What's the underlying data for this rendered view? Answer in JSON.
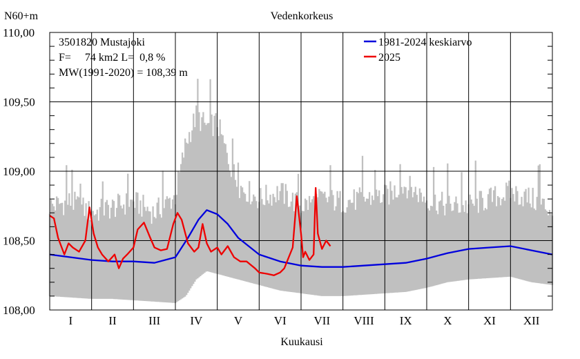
{
  "chart_data": {
    "type": "line",
    "title": "Vedenkorkeus",
    "ylabel": "N60+m",
    "xlabel": "Kuukausi",
    "ylim": [
      108.0,
      110.0
    ],
    "xlim": [
      0,
      12
    ],
    "x_unit": "months from January 1",
    "yticks": [
      108.0,
      108.5,
      109.0,
      109.5,
      110.0
    ],
    "ytick_labels": [
      "108,00",
      "108,50",
      "109,00",
      "109,50",
      "110,00"
    ],
    "month_labels": [
      "I",
      "II",
      "III",
      "IV",
      "V",
      "VI",
      "VII",
      "VIII",
      "IX",
      "X",
      "XI",
      "XII"
    ],
    "grid": true,
    "legend_position": "top-right",
    "annotations": [
      "3501820 Mustajoki",
      "F=     74 km2 L=  0,8 %",
      "MW(1991-2020) = 108,39 m"
    ],
    "colors": {
      "mean": "#0000dd",
      "current": "#ee0000",
      "range": "#c0c0c0"
    },
    "series": [
      {
        "name": "1981-2024 keskiarvo",
        "color": "#0000dd",
        "x": [
          0.0,
          0.5,
          1.0,
          1.5,
          2.0,
          2.5,
          3.0,
          3.3,
          3.55,
          3.75,
          4.0,
          4.25,
          4.5,
          5.0,
          5.5,
          6.0,
          6.5,
          7.0,
          7.5,
          8.0,
          8.5,
          9.0,
          9.5,
          10.0,
          10.5,
          11.0,
          11.5,
          12.0
        ],
        "y": [
          108.4,
          108.38,
          108.36,
          108.35,
          108.35,
          108.34,
          108.38,
          108.52,
          108.65,
          108.72,
          108.69,
          108.62,
          108.52,
          108.4,
          108.35,
          108.32,
          108.31,
          108.31,
          108.32,
          108.33,
          108.34,
          108.37,
          108.41,
          108.44,
          108.45,
          108.46,
          108.43,
          108.4
        ]
      },
      {
        "name": "2025",
        "color": "#ee0000",
        "x": [
          0.0,
          0.1,
          0.2,
          0.35,
          0.45,
          0.55,
          0.7,
          0.85,
          0.95,
          1.05,
          1.15,
          1.25,
          1.4,
          1.55,
          1.65,
          1.75,
          1.85,
          2.0,
          2.1,
          2.25,
          2.4,
          2.5,
          2.65,
          2.8,
          2.95,
          3.05,
          3.15,
          3.3,
          3.45,
          3.55,
          3.65,
          3.75,
          3.85,
          4.0,
          4.1,
          4.25,
          4.4,
          4.55,
          4.7,
          4.9,
          5.0,
          5.2,
          5.35,
          5.5,
          5.6,
          5.8,
          5.9,
          6.0,
          6.05,
          6.1,
          6.2,
          6.3,
          6.35,
          6.4,
          6.5,
          6.6,
          6.7
        ],
        "y": [
          108.68,
          108.66,
          108.52,
          108.4,
          108.48,
          108.45,
          108.42,
          108.5,
          108.74,
          108.55,
          108.45,
          108.4,
          108.35,
          108.4,
          108.3,
          108.37,
          108.4,
          108.45,
          108.58,
          108.63,
          108.52,
          108.45,
          108.43,
          108.44,
          108.62,
          108.7,
          108.65,
          108.48,
          108.42,
          108.45,
          108.62,
          108.48,
          108.42,
          108.45,
          108.4,
          108.46,
          108.38,
          108.35,
          108.35,
          108.3,
          108.27,
          108.26,
          108.25,
          108.27,
          108.3,
          108.45,
          108.82,
          108.55,
          108.38,
          108.42,
          108.36,
          108.4,
          108.88,
          108.55,
          108.44,
          108.5,
          108.46
        ]
      },
      {
        "name": "range",
        "color": "#c0c0c0",
        "x": [
          0.0,
          0.5,
          1.0,
          1.5,
          2.0,
          2.5,
          3.0,
          3.25,
          3.5,
          3.75,
          4.0,
          4.25,
          4.5,
          5.0,
          5.5,
          6.0,
          6.5,
          7.0,
          7.5,
          8.0,
          8.5,
          9.0,
          9.5,
          10.0,
          10.5,
          11.0,
          11.5,
          12.0
        ],
        "low": [
          108.1,
          108.09,
          108.08,
          108.08,
          108.07,
          108.06,
          108.05,
          108.1,
          108.22,
          108.28,
          108.26,
          108.24,
          108.22,
          108.18,
          108.14,
          108.12,
          108.1,
          108.1,
          108.11,
          108.12,
          108.13,
          108.16,
          108.2,
          108.22,
          108.23,
          108.24,
          108.2,
          108.18
        ],
        "high": [
          108.75,
          108.78,
          108.7,
          108.74,
          108.78,
          108.7,
          108.82,
          109.2,
          109.4,
          109.32,
          109.35,
          109.1,
          108.9,
          108.8,
          108.85,
          108.75,
          108.8,
          108.78,
          108.8,
          108.82,
          108.9,
          108.8,
          108.75,
          108.75,
          108.8,
          108.85,
          108.8,
          108.72
        ]
      }
    ]
  }
}
